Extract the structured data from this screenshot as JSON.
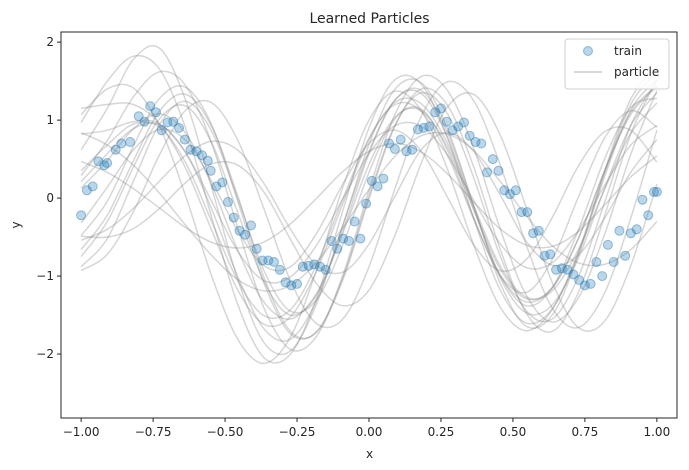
{
  "chart_data": {
    "type": "scatter",
    "title": "Learned Particles",
    "xlabel": "x",
    "ylabel": "y",
    "xlim": [
      -1.07,
      1.07
    ],
    "ylim": [
      -2.82,
      2.13
    ],
    "xticks": [
      -1.0,
      -0.75,
      -0.5,
      -0.25,
      0.0,
      0.25,
      0.5,
      0.75,
      1.0
    ],
    "xtick_labels": [
      "−1.00",
      "−0.75",
      "−0.50",
      "−0.25",
      "0.00",
      "0.25",
      "0.50",
      "0.75",
      "1.00"
    ],
    "yticks": [
      -2,
      -1,
      0,
      1,
      2
    ],
    "ytick_labels": [
      "−2",
      "−1",
      "0",
      "1",
      "2"
    ],
    "grid": false,
    "legend_position": "top-right",
    "legend": [
      {
        "label": "train",
        "kind": "marker",
        "color": "#1f77b4"
      },
      {
        "label": "particle",
        "kind": "line",
        "color": "#a0a0a0"
      }
    ],
    "colors": {
      "train": "#1f77b4",
      "particle": "#808080"
    },
    "train": {
      "x": [
        -1.0,
        -0.98,
        -0.96,
        -0.94,
        -0.92,
        -0.91,
        -0.88,
        -0.86,
        -0.83,
        -0.8,
        -0.78,
        -0.76,
        -0.74,
        -0.72,
        -0.7,
        -0.68,
        -0.66,
        -0.64,
        -0.62,
        -0.6,
        -0.58,
        -0.56,
        -0.55,
        -0.53,
        -0.51,
        -0.49,
        -0.47,
        -0.45,
        -0.43,
        -0.41,
        -0.39,
        -0.37,
        -0.35,
        -0.33,
        -0.31,
        -0.29,
        -0.27,
        -0.25,
        -0.23,
        -0.21,
        -0.19,
        -0.17,
        -0.15,
        -0.13,
        -0.11,
        -0.09,
        -0.07,
        -0.05,
        -0.03,
        -0.01,
        0.01,
        0.03,
        0.05,
        0.07,
        0.09,
        0.11,
        0.13,
        0.15,
        0.17,
        0.19,
        0.21,
        0.23,
        0.25,
        0.27,
        0.29,
        0.31,
        0.33,
        0.35,
        0.37,
        0.39,
        0.41,
        0.43,
        0.45,
        0.47,
        0.49,
        0.51,
        0.53,
        0.55,
        0.57,
        0.59,
        0.61,
        0.63,
        0.65,
        0.67,
        0.69,
        0.71,
        0.73,
        0.75,
        0.77,
        0.79,
        0.81,
        0.83,
        0.85,
        0.87,
        0.89,
        0.91,
        0.93,
        0.95,
        0.97,
        0.99,
        1.0
      ],
      "y": [
        -0.22,
        0.1,
        0.15,
        0.47,
        0.42,
        0.45,
        0.62,
        0.7,
        0.72,
        1.05,
        0.98,
        1.18,
        1.1,
        0.87,
        0.97,
        0.98,
        0.9,
        0.75,
        0.62,
        0.6,
        0.55,
        0.48,
        0.35,
        0.15,
        0.2,
        -0.05,
        -0.25,
        -0.42,
        -0.47,
        -0.35,
        -0.65,
        -0.8,
        -0.8,
        -0.82,
        -0.92,
        -1.08,
        -1.12,
        -1.1,
        -0.88,
        -0.87,
        -0.85,
        -0.88,
        -0.92,
        -0.55,
        -0.65,
        -0.52,
        -0.55,
        -0.3,
        -0.52,
        -0.07,
        0.22,
        0.15,
        0.25,
        0.7,
        0.63,
        0.75,
        0.6,
        0.62,
        0.88,
        0.9,
        0.92,
        1.1,
        1.15,
        0.98,
        0.87,
        0.92,
        0.97,
        0.8,
        0.72,
        0.7,
        0.33,
        0.5,
        0.35,
        0.1,
        0.05,
        0.1,
        -0.18,
        -0.18,
        -0.45,
        -0.42,
        -0.74,
        -0.72,
        -0.92,
        -0.9,
        -0.92,
        -0.98,
        -1.05,
        -1.12,
        -1.1,
        -0.82,
        -1.0,
        -0.6,
        -0.82,
        -0.42,
        -0.74,
        -0.45,
        -0.4,
        -0.02,
        -0.22,
        0.08,
        0.08
      ]
    },
    "particles": [
      [
        0.62,
        1.15,
        1.78,
        1.92,
        1.25,
        0.12,
        -1.06,
        -1.86,
        -1.96,
        -1.35,
        -0.35,
        0.6,
        1.26,
        1.38,
        0.84,
        -0.1,
        -1.01,
        -1.47,
        -1.37,
        -0.77,
        0.12,
        0.93,
        1.35
      ],
      [
        -0.54,
        -0.4,
        -0.13,
        0.22,
        0.55,
        0.73,
        0.61,
        0.18,
        -0.4,
        -0.86,
        -0.95,
        -0.59,
        0.03,
        0.62,
        0.84,
        0.6,
        0.05,
        -0.55,
        -0.86,
        -0.73,
        -0.26,
        0.33,
        0.75
      ],
      [
        0.21,
        0.57,
        0.89,
        0.94,
        0.58,
        -0.05,
        -0.69,
        -1.06,
        -1.01,
        -0.6,
        -0.01,
        0.57,
        0.93,
        0.92,
        0.55,
        -0.03,
        -0.58,
        -0.89,
        -0.83,
        -0.42,
        0.16,
        0.68,
        0.93
      ],
      [
        -0.88,
        -0.52,
        0.22,
        0.95,
        1.24,
        0.85,
        -0.02,
        -0.94,
        -1.45,
        -1.3,
        -0.6,
        0.33,
        1.02,
        1.14,
        0.61,
        -0.25,
        -0.98,
        -1.21,
        -0.79,
        0.01,
        0.77,
        1.12,
        0.91
      ],
      [
        1.15,
        1.2,
        1.2,
        0.95,
        0.38,
        -0.42,
        -1.19,
        -1.62,
        -1.52,
        -0.93,
        -0.07,
        0.75,
        1.23,
        1.21,
        0.7,
        -0.1,
        -0.86,
        -1.27,
        -1.19,
        -0.66,
        0.11,
        0.83,
        1.22
      ],
      [
        -0.48,
        -0.04,
        0.67,
        1.28,
        1.42,
        0.93,
        -0.06,
        -1.1,
        -1.74,
        -1.71,
        -1.02,
        0.03,
        0.94,
        1.35,
        1.08,
        0.26,
        -0.73,
        -1.44,
        -1.55,
        -1.01,
        -0.06,
        0.93,
        1.51
      ],
      [
        0.35,
        0.68,
        0.95,
        0.91,
        0.45,
        -0.31,
        -1.07,
        -1.51,
        -1.43,
        -0.85,
        -0.01,
        0.77,
        1.2,
        1.11,
        0.55,
        -0.27,
        -0.99,
        -1.33,
        -1.15,
        -0.52,
        0.34,
        1.07,
        1.43
      ],
      [
        -0.32,
        0.14,
        0.62,
        0.88,
        0.74,
        0.21,
        -0.43,
        -0.87,
        -0.88,
        -0.45,
        0.18,
        0.7,
        0.87,
        0.6,
        0.01,
        -0.6,
        -0.93,
        -0.79,
        -0.25,
        0.41,
        0.85,
        0.87,
        0.46
      ],
      [
        -0.75,
        -0.3,
        0.4,
        1.02,
        1.18,
        0.7,
        -0.2,
        -1.08,
        -1.5,
        -1.24,
        -0.42,
        0.57,
        1.26,
        1.34,
        0.78,
        -0.14,
        -0.98,
        -1.38,
        -1.15,
        -0.41,
        0.5,
        1.16,
        1.28
      ],
      [
        0.97,
        1.5,
        1.82,
        1.65,
        0.89,
        -0.26,
        -1.38,
        -2.05,
        -2.0,
        -1.28,
        -0.16,
        0.9,
        1.52,
        1.46,
        0.77,
        -0.26,
        -1.17,
        -1.6,
        -1.42,
        -0.71,
        0.27,
        1.13,
        1.52
      ],
      [
        0.84,
        0.68,
        0.42,
        0.06,
        -0.35,
        -0.74,
        -1.05,
        -1.19,
        -1.12,
        -0.82,
        -0.38,
        0.11,
        0.54,
        0.8,
        0.82,
        0.61,
        0.22,
        -0.22,
        -0.61,
        -0.83,
        -0.85,
        -0.66,
        -0.3
      ],
      [
        0.47,
        0.33,
        0.12,
        -0.13,
        -0.38,
        -0.57,
        -0.64,
        -0.56,
        -0.33,
        0.0,
        0.34,
        0.6,
        0.7,
        0.59,
        0.31,
        -0.05,
        -0.39,
        -0.6,
        -0.62,
        -0.43,
        -0.09,
        0.27,
        0.54
      ],
      [
        1.07,
        1.4,
        1.41,
        0.92,
        0.02,
        -1.01,
        -1.82,
        -2.12,
        -1.78,
        -0.92,
        0.14,
        1.0,
        1.37,
        1.12,
        0.37,
        -0.6,
        -1.39,
        -1.7,
        -1.43,
        -0.69,
        0.32,
        1.2,
        1.62
      ],
      [
        0.29,
        0.74,
        1.3,
        1.62,
        1.44,
        0.69,
        -0.4,
        -1.42,
        -1.94,
        -1.77,
        -0.99,
        0.1,
        1.08,
        1.56,
        1.38,
        0.64,
        -0.38,
        -1.24,
        -1.59,
        -1.28,
        -0.47,
        0.56,
        1.38
      ],
      [
        -0.49,
        -0.5,
        -0.39,
        -0.13,
        0.2,
        0.44,
        0.42,
        0.07,
        -0.53,
        -1.1,
        -1.38,
        -1.18,
        -0.47,
        0.45,
        1.17,
        1.33,
        0.82,
        -0.11,
        -1.08,
        -1.66,
        -1.58,
        -0.87,
        0.18
      ],
      [
        -0.66,
        -0.22,
        0.48,
        1.12,
        1.33,
        0.91,
        0.01,
        -1.03,
        -1.71,
        -1.72,
        -1.05,
        -0.01,
        0.93,
        1.4,
        1.19,
        0.4,
        -0.64,
        -1.47,
        -1.71,
        -1.21,
        -0.23,
        0.82,
        1.52
      ],
      [
        0.13,
        0.48,
        0.89,
        1.08,
        0.83,
        0.16,
        -0.68,
        -1.34,
        -1.55,
        -1.22,
        -0.45,
        0.43,
        1.04,
        1.12,
        0.65,
        -0.15,
        -0.9,
        -1.29,
        -1.15,
        -0.52,
        0.35,
        1.1,
        1.44
      ],
      [
        -0.93,
        -0.72,
        -0.17,
        0.56,
        1.13,
        1.22,
        0.73,
        -0.15,
        -1.06,
        -1.61,
        -1.55,
        -0.88,
        0.13,
        1.05,
        1.49,
        1.25,
        0.44,
        -0.59,
        -1.41,
        -1.66,
        -1.22,
        -0.26,
        0.87
      ],
      [
        0.82,
        0.87,
        0.98,
        0.95,
        0.58,
        -0.15,
        -1.02,
        -1.68,
        -1.81,
        -1.31,
        -0.35,
        0.69,
        1.4,
        1.48,
        0.89,
        -0.1,
        -1.08,
        -1.64,
        -1.5,
        -0.74,
        0.34,
        1.27,
        1.69
      ]
    ]
  }
}
